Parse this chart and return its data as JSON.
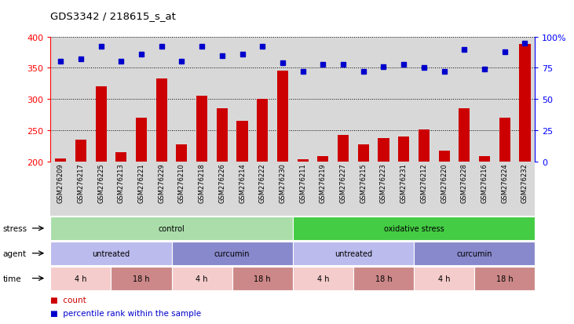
{
  "title": "GDS3342 / 218615_s_at",
  "samples": [
    "GSM276209",
    "GSM276217",
    "GSM276225",
    "GSM276213",
    "GSM276221",
    "GSM276229",
    "GSM276210",
    "GSM276218",
    "GSM276226",
    "GSM276214",
    "GSM276222",
    "GSM276230",
    "GSM276211",
    "GSM276219",
    "GSM276227",
    "GSM276215",
    "GSM276223",
    "GSM276231",
    "GSM276212",
    "GSM276220",
    "GSM276228",
    "GSM276216",
    "GSM276224",
    "GSM276232"
  ],
  "counts": [
    205,
    235,
    320,
    215,
    270,
    333,
    228,
    305,
    285,
    265,
    301,
    345,
    204,
    209,
    243,
    228,
    238,
    240,
    252,
    218,
    285,
    209,
    270,
    388
  ],
  "percentiles": [
    80,
    82,
    92,
    80,
    86,
    92,
    80,
    92,
    85,
    86,
    92,
    79,
    72,
    78,
    78,
    72,
    76,
    78,
    75,
    72,
    90,
    74,
    88,
    95
  ],
  "bar_color": "#cc0000",
  "dot_color": "#0000cc",
  "plot_bg": "#d8d8d8",
  "ylim_left": [
    200,
    400
  ],
  "ylim_right": [
    0,
    100
  ],
  "yticks_left": [
    200,
    250,
    300,
    350,
    400
  ],
  "yticks_right": [
    0,
    25,
    50,
    75,
    100
  ],
  "ytick_labels_right": [
    "0",
    "25",
    "50",
    "75",
    "100%"
  ],
  "grid_values": [
    250,
    300,
    350,
    400
  ],
  "stress_groups": [
    {
      "label": "control",
      "start": 0,
      "end": 12,
      "color": "#aaddaa"
    },
    {
      "label": "oxidative stress",
      "start": 12,
      "end": 24,
      "color": "#44cc44"
    }
  ],
  "agent_groups": [
    {
      "label": "untreated",
      "start": 0,
      "end": 6,
      "color": "#bbbbee"
    },
    {
      "label": "curcumin",
      "start": 6,
      "end": 12,
      "color": "#8888cc"
    },
    {
      "label": "untreated",
      "start": 12,
      "end": 18,
      "color": "#bbbbee"
    },
    {
      "label": "curcumin",
      "start": 18,
      "end": 24,
      "color": "#8888cc"
    }
  ],
  "time_groups": [
    {
      "label": "4 h",
      "start": 0,
      "end": 3,
      "color": "#f5cccc"
    },
    {
      "label": "18 h",
      "start": 3,
      "end": 6,
      "color": "#cc8888"
    },
    {
      "label": "4 h",
      "start": 6,
      "end": 9,
      "color": "#f5cccc"
    },
    {
      "label": "18 h",
      "start": 9,
      "end": 12,
      "color": "#cc8888"
    },
    {
      "label": "4 h",
      "start": 12,
      "end": 15,
      "color": "#f5cccc"
    },
    {
      "label": "18 h",
      "start": 15,
      "end": 18,
      "color": "#cc8888"
    },
    {
      "label": "4 h",
      "start": 18,
      "end": 21,
      "color": "#f5cccc"
    },
    {
      "label": "18 h",
      "start": 21,
      "end": 24,
      "color": "#cc8888"
    }
  ],
  "row_labels": [
    "stress",
    "agent",
    "time"
  ],
  "legend_count_color": "#cc0000",
  "legend_pct_color": "#0000cc"
}
